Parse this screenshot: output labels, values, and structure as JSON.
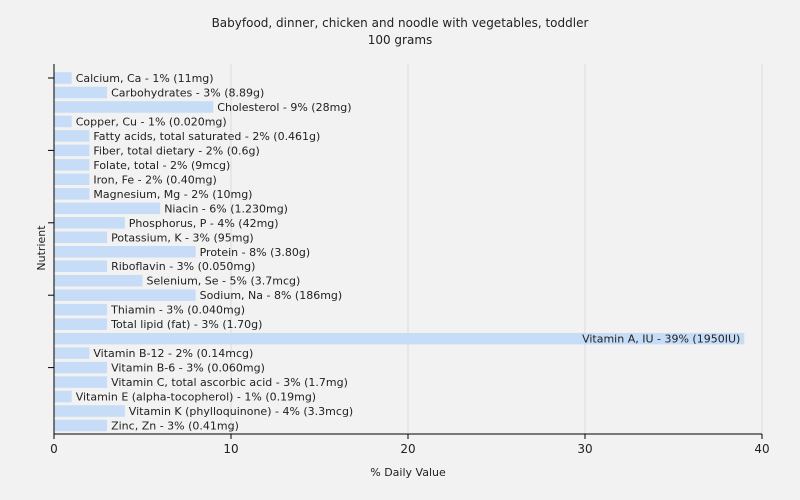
{
  "chart_data": {
    "type": "bar",
    "orientation": "horizontal",
    "title": "Babyfood, dinner, chicken and noodle with vegetables, toddler",
    "subtitle": "100 grams",
    "xlabel": "% Daily Value",
    "ylabel": "Nutrient",
    "xlim": [
      0,
      40
    ],
    "xticks": [
      0,
      10,
      20,
      30,
      40
    ],
    "grid": true,
    "bar_color": "#c6dcf7",
    "categories": [
      "Calcium, Ca",
      "Carbohydrates",
      "Cholesterol",
      "Copper, Cu",
      "Fatty acids, total saturated",
      "Fiber, total dietary",
      "Folate, total",
      "Iron, Fe",
      "Magnesium, Mg",
      "Niacin",
      "Phosphorus, P",
      "Potassium, K",
      "Protein",
      "Riboflavin",
      "Selenium, Se",
      "Sodium, Na",
      "Thiamin",
      "Total lipid (fat)",
      "Vitamin A, IU",
      "Vitamin B-12",
      "Vitamin B-6",
      "Vitamin C, total ascorbic acid",
      "Vitamin E (alpha-tocopherol)",
      "Vitamin K (phylloquinone)",
      "Zinc, Zn"
    ],
    "values": [
      1,
      3,
      9,
      1,
      2,
      2,
      2,
      2,
      2,
      6,
      4,
      3,
      8,
      3,
      5,
      8,
      3,
      3,
      39,
      2,
      3,
      3,
      1,
      4,
      3
    ],
    "labels": [
      "Calcium, Ca - 1% (11mg)",
      "Carbohydrates - 3% (8.89g)",
      "Cholesterol - 9% (28mg)",
      "Copper, Cu - 1% (0.020mg)",
      "Fatty acids, total saturated - 2% (0.461g)",
      "Fiber, total dietary - 2% (0.6g)",
      "Folate, total - 2% (9mcg)",
      "Iron, Fe - 2% (0.40mg)",
      "Magnesium, Mg - 2% (10mg)",
      "Niacin - 6% (1.230mg)",
      "Phosphorus, P - 4% (42mg)",
      "Potassium, K - 3% (95mg)",
      "Protein - 8% (3.80g)",
      "Riboflavin - 3% (0.050mg)",
      "Selenium, Se - 5% (3.7mcg)",
      "Sodium, Na - 8% (186mg)",
      "Thiamin - 3% (0.040mg)",
      "Total lipid (fat) - 3% (1.70g)",
      "Vitamin A, IU - 39% (1950IU)",
      "Vitamin B-12 - 2% (0.14mcg)",
      "Vitamin B-6 - 3% (0.060mg)",
      "Vitamin C, total ascorbic acid - 3% (1.7mg)",
      "Vitamin E (alpha-tocopherol) - 1% (0.19mg)",
      "Vitamin K (phylloquinone) - 4% (3.3mcg)",
      "Zinc, Zn - 3% (0.41mg)"
    ]
  }
}
